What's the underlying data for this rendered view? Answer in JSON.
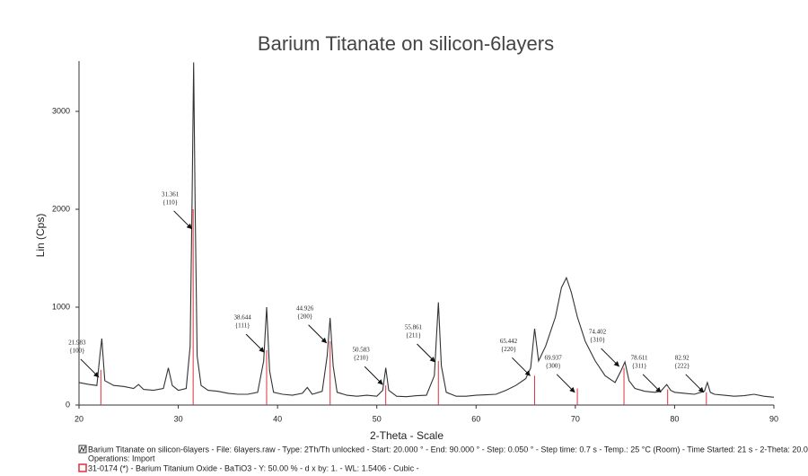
{
  "chart_data": {
    "type": "line",
    "title": "Barium Titanate on silicon-6layers",
    "x_label": "2-Theta - Scale",
    "y_label": "Lin (Cps)",
    "xlim": [
      20,
      90
    ],
    "xticks": [
      20,
      30,
      40,
      50,
      60,
      70,
      80,
      90
    ],
    "ylim": [
      0,
      3500
    ],
    "yticks": [
      0,
      1000,
      2000,
      3000
    ],
    "series": [
      {
        "name": "Barium Titanate on silicon-6layers - File: 6layers.raw - Type: 2Th/Th unlocked - Start: 20.000 ° - End: 90.000 ° - Step: 0.050 ° - Step time: 0.7 s - Temp.: 25 °C (Room) - Time Started: 21 s - 2-Theta: 20.0",
        "color": "#333333",
        "x": [
          20,
          21,
          21.8,
          22.1,
          22.3,
          22.6,
          23.5,
          24.5,
          25.5,
          26,
          26.5,
          27.5,
          28.5,
          29.0,
          29.4,
          30.0,
          30.8,
          31.2,
          31.4,
          31.55,
          31.7,
          31.9,
          32.3,
          33,
          34,
          35,
          36,
          37,
          38,
          38.6,
          38.9,
          39.2,
          39.6,
          40.5,
          41.5,
          42.5,
          43,
          43.5,
          44.5,
          45.0,
          45.3,
          45.6,
          46,
          47,
          48,
          49,
          50,
          50.6,
          50.9,
          51.2,
          52,
          53,
          54,
          55,
          55.8,
          56.2,
          56.5,
          57,
          58,
          59,
          60,
          61,
          62,
          63,
          64,
          65,
          65.5,
          65.9,
          66.3,
          67,
          68,
          68.6,
          69.1,
          69.6,
          70.2,
          71,
          72,
          73,
          74,
          74.6,
          75.0,
          75.4,
          76,
          77,
          78,
          78.6,
          79.2,
          79.6,
          80,
          81,
          82,
          83,
          83.3,
          83.6,
          84,
          85,
          86,
          87,
          88,
          89,
          90
        ],
        "values": [
          230,
          210,
          200,
          500,
          680,
          250,
          200,
          190,
          170,
          210,
          160,
          150,
          170,
          380,
          200,
          150,
          170,
          600,
          2200,
          3500,
          2000,
          500,
          200,
          150,
          140,
          120,
          110,
          110,
          130,
          450,
          1000,
          350,
          130,
          110,
          100,
          120,
          180,
          110,
          140,
          500,
          890,
          400,
          130,
          100,
          90,
          100,
          90,
          150,
          380,
          150,
          90,
          85,
          95,
          100,
          300,
          1050,
          400,
          130,
          90,
          90,
          100,
          105,
          110,
          150,
          200,
          270,
          380,
          780,
          450,
          600,
          900,
          1200,
          1300,
          1150,
          900,
          650,
          450,
          300,
          230,
          350,
          440,
          250,
          170,
          140,
          130,
          140,
          210,
          150,
          130,
          120,
          110,
          140,
          230,
          130,
          110,
          100,
          90,
          95,
          110,
          90,
          80
        ]
      },
      {
        "name": "31-0174 (*) - Barium Titanium Oxide - BaTiO3 - Y: 50.00 % - d x by: 1. - WL: 1.5406 - Cubic -",
        "color": "#e0303a",
        "x": [
          22.2,
          31.5,
          38.9,
          45.3,
          50.9,
          56.2,
          65.9,
          70.2,
          74.9,
          79.3,
          83.2
        ],
        "values": [
          360,
          2000,
          560,
          650,
          200,
          450,
          300,
          170,
          380,
          160,
          130
        ]
      }
    ],
    "operations_note": "Operations: Import",
    "annotations": [
      {
        "x": 21.983,
        "hkl": "{100}",
        "y": 285
      },
      {
        "x": 31.361,
        "hkl": "{110}",
        "y": 1800
      },
      {
        "x": 38.644,
        "hkl": "{111}",
        "y": 540
      },
      {
        "x": 44.926,
        "hkl": "{200}",
        "y": 635
      },
      {
        "x": 50.583,
        "hkl": "{210}",
        "y": 210
      },
      {
        "x": 55.861,
        "hkl": "{211}",
        "y": 440
      },
      {
        "x": 65.442,
        "hkl": "{220}",
        "y": 300
      },
      {
        "x": 69.937,
        "hkl": "{300}",
        "y": 130
      },
      {
        "x": 74.402,
        "hkl": "{310}",
        "y": 395
      },
      {
        "x": 78.611,
        "hkl": "{311}",
        "y": 130
      },
      {
        "x": 82.92,
        "hkl": "{222}",
        "y": 130
      }
    ]
  }
}
